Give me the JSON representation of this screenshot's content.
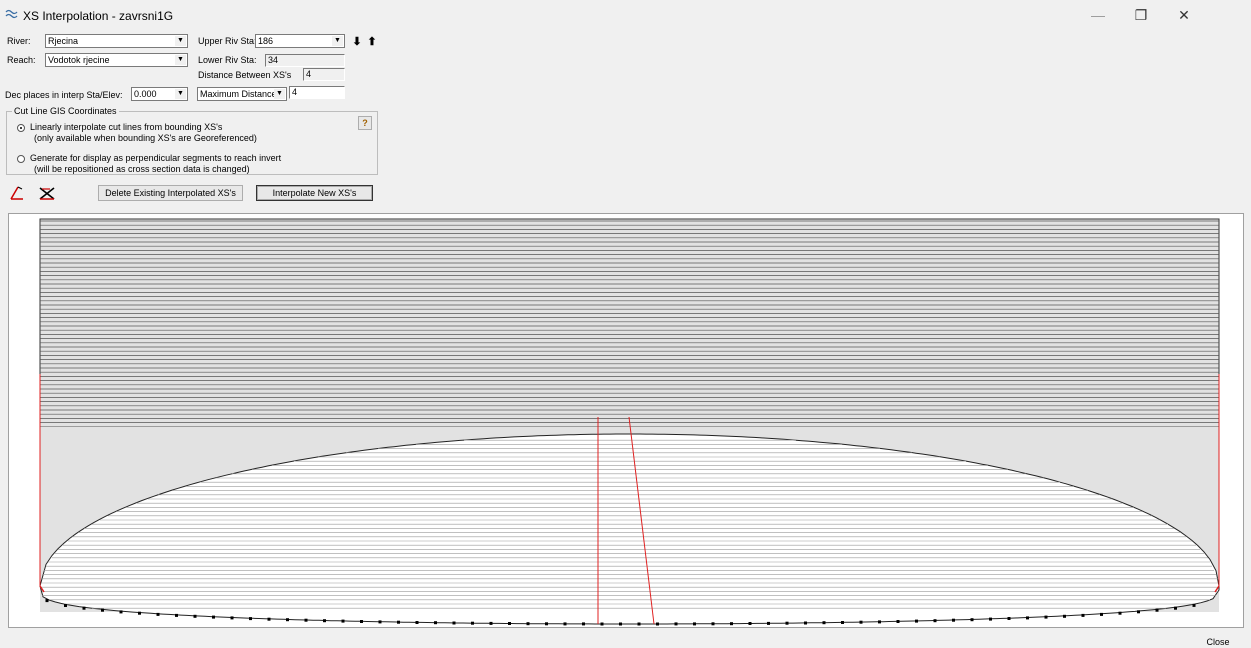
{
  "window": {
    "title": "XS Interpolation  - zavrsni1G",
    "minimize_glyph": "—",
    "restore_glyph": "❐",
    "close_glyph": "✕"
  },
  "form": {
    "river_label": "River:",
    "river_value": "Rjecina",
    "reach_label": "Reach:",
    "reach_value": "Vodotok rjecine",
    "upper_riv_sta_label": "Upper Riv Sta:",
    "upper_riv_sta_value": "186",
    "lower_riv_sta_label": "Lower Riv Sta:",
    "lower_riv_sta_value": "34",
    "distance_between_label": "Distance Between XS's",
    "distance_between_value": "4",
    "dec_places_label": "Dec places in interp Sta/Elev:",
    "dec_places_value": "0.000",
    "max_distance_select": "Maximum Distance (m)",
    "max_distance_value": "4"
  },
  "cut_line": {
    "group_title": "Cut Line GIS Coordinates",
    "option1_line1": "Linearly interpolate cut lines from bounding XS's",
    "option1_line2": "(only available when bounding XS's are Georeferenced)",
    "option2_line1": "Generate for display as perpendicular segments to reach invert",
    "option2_line2": "(will be repositioned as cross section data is changed)",
    "help_glyph": "?"
  },
  "buttons": {
    "delete_label": "Delete Existing Interpolated XS's",
    "interpolate_label": "Interpolate New XS's",
    "close_label": "Close"
  },
  "icons": {
    "app": "river-wave-icon",
    "down_arrow": "⬇",
    "up_arrow": "⬆",
    "combo_arrow": "▼",
    "draw_cutline": "draw-line-icon",
    "delete_cutline": "delete-line-icon"
  },
  "colors": {
    "cut_line": "#e02020",
    "invert_points": "#000000",
    "grid_lines": "#555555",
    "fill": "#e2e2e2"
  }
}
